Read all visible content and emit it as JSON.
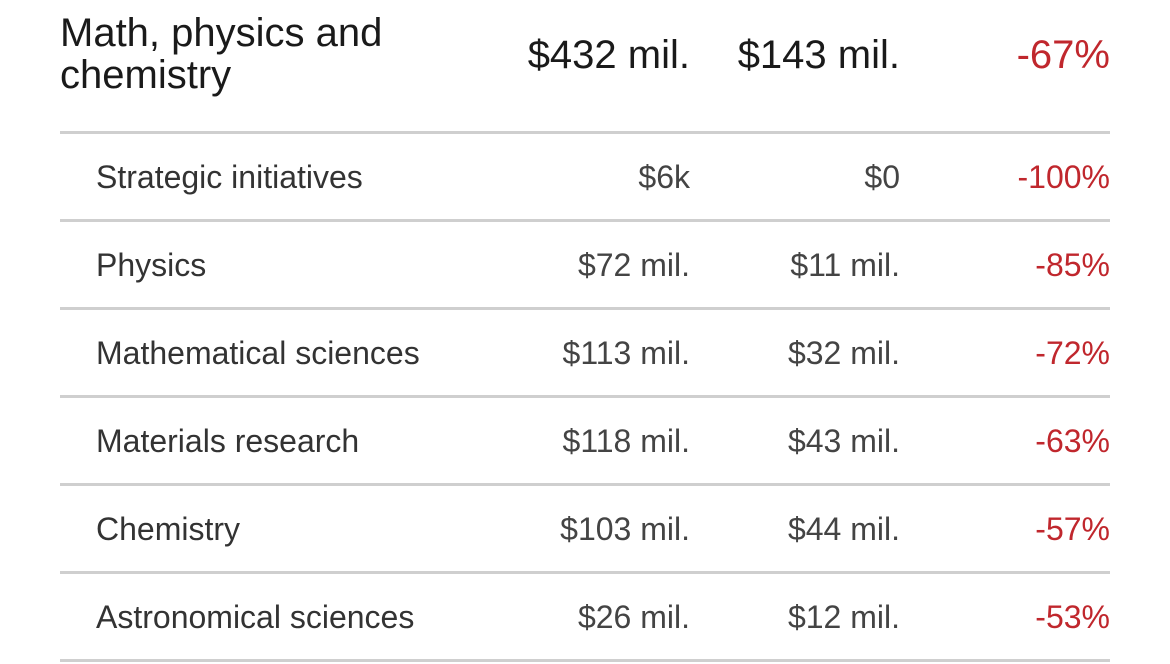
{
  "summary": {
    "label": "Math, physics and chemistry",
    "before": "$432 mil.",
    "after": "$143 mil.",
    "change": "-67%"
  },
  "rows": [
    {
      "label": "Strategic initiatives",
      "before": "$6k",
      "after": "$0",
      "change": "-100%"
    },
    {
      "label": "Physics",
      "before": "$72 mil.",
      "after": "$11 mil.",
      "change": "-85%"
    },
    {
      "label": "Mathematical sciences",
      "before": "$113 mil.",
      "after": "$32 mil.",
      "change": "-72%"
    },
    {
      "label": "Materials research",
      "before": "$118 mil.",
      "after": "$43 mil.",
      "change": "-63%"
    },
    {
      "label": "Chemistry",
      "before": "$103 mil.",
      "after": "$44 mil.",
      "change": "-57%"
    },
    {
      "label": "Astronomical sciences",
      "before": "$26 mil.",
      "after": "$12 mil.",
      "change": "-53%"
    }
  ],
  "colors": {
    "negative_change": "#c0272d",
    "divider": "#cfcfcf"
  }
}
